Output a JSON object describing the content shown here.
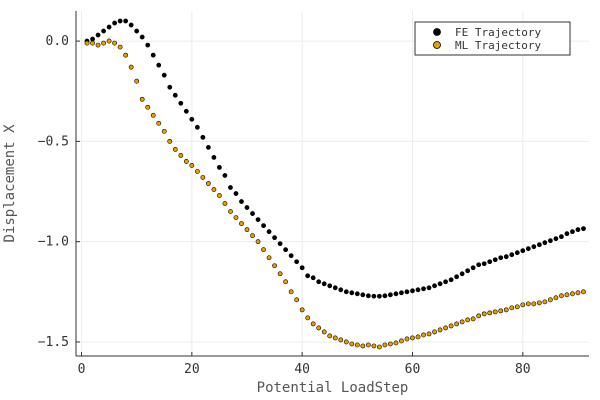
{
  "chart_data": {
    "type": "scatter",
    "title": "",
    "xlabel": "Potential LoadStep",
    "ylabel": "Displacement X",
    "xlim": [
      -1,
      92
    ],
    "ylim": [
      -1.57,
      0.15
    ],
    "x_ticks": [
      0,
      20,
      40,
      60,
      80
    ],
    "y_ticks": [
      0.0,
      -0.5,
      -1.0,
      -1.5
    ],
    "x_tick_labels": [
      "0",
      "20",
      "40",
      "60",
      "80"
    ],
    "y_tick_labels": [
      "0.0",
      "−0.5",
      "−1.0",
      "−1.5"
    ],
    "grid": true,
    "legend_position": "top-right",
    "series": [
      {
        "name": "FE Trajectory",
        "color": "#000000",
        "x": [
          1,
          2,
          3,
          4,
          5,
          6,
          7,
          8,
          9,
          10,
          11,
          12,
          13,
          14,
          15,
          16,
          17,
          18,
          19,
          20,
          21,
          22,
          23,
          24,
          25,
          26,
          27,
          28,
          29,
          30,
          31,
          32,
          33,
          34,
          35,
          36,
          37,
          38,
          39,
          40,
          41,
          42,
          43,
          44,
          45,
          46,
          47,
          48,
          49,
          50,
          51,
          52,
          53,
          54,
          55,
          56,
          57,
          58,
          59,
          60,
          61,
          62,
          63,
          64,
          65,
          66,
          67,
          68,
          69,
          70,
          71,
          72,
          73,
          74,
          75,
          76,
          77,
          78,
          79,
          80,
          81,
          82,
          83,
          84,
          85,
          86,
          87,
          88,
          89,
          90,
          91
        ],
        "y": [
          0.0,
          0.01,
          0.03,
          0.05,
          0.07,
          0.09,
          0.1,
          0.1,
          0.08,
          0.05,
          0.02,
          -0.02,
          -0.07,
          -0.12,
          -0.17,
          -0.23,
          -0.27,
          -0.31,
          -0.35,
          -0.39,
          -0.43,
          -0.48,
          -0.53,
          -0.58,
          -0.63,
          -0.67,
          -0.73,
          -0.76,
          -0.8,
          -0.83,
          -0.86,
          -0.89,
          -0.92,
          -0.95,
          -0.98,
          -1.01,
          -1.04,
          -1.07,
          -1.1,
          -1.13,
          -1.17,
          -1.18,
          -1.2,
          -1.21,
          -1.22,
          -1.23,
          -1.24,
          -1.25,
          -1.255,
          -1.26,
          -1.265,
          -1.27,
          -1.272,
          -1.272,
          -1.27,
          -1.265,
          -1.26,
          -1.255,
          -1.25,
          -1.245,
          -1.24,
          -1.235,
          -1.23,
          -1.22,
          -1.21,
          -1.2,
          -1.19,
          -1.175,
          -1.16,
          -1.145,
          -1.13,
          -1.115,
          -1.11,
          -1.1,
          -1.09,
          -1.08,
          -1.075,
          -1.065,
          -1.055,
          -1.045,
          -1.035,
          -1.025,
          -1.015,
          -1.005,
          -0.995,
          -0.985,
          -0.975,
          -0.96,
          -0.95,
          -0.94,
          -0.935
        ]
      },
      {
        "name": "ML Trajectory",
        "color": "#e69f00",
        "x": [
          1,
          2,
          3,
          4,
          5,
          6,
          7,
          8,
          9,
          10,
          11,
          12,
          13,
          14,
          15,
          16,
          17,
          18,
          19,
          20,
          21,
          22,
          23,
          24,
          25,
          26,
          27,
          28,
          29,
          30,
          31,
          32,
          33,
          34,
          35,
          36,
          37,
          38,
          39,
          40,
          41,
          42,
          43,
          44,
          45,
          46,
          47,
          48,
          49,
          50,
          51,
          52,
          53,
          54,
          55,
          56,
          57,
          58,
          59,
          60,
          61,
          62,
          63,
          64,
          65,
          66,
          67,
          68,
          69,
          70,
          71,
          72,
          73,
          74,
          75,
          76,
          77,
          78,
          79,
          80,
          81,
          82,
          83,
          84,
          85,
          86,
          87,
          88,
          89,
          90,
          91
        ],
        "y": [
          -0.01,
          -0.01,
          -0.02,
          -0.01,
          0.0,
          -0.01,
          -0.03,
          -0.07,
          -0.13,
          -0.2,
          -0.29,
          -0.33,
          -0.37,
          -0.41,
          -0.45,
          -0.5,
          -0.54,
          -0.57,
          -0.6,
          -0.62,
          -0.65,
          -0.68,
          -0.71,
          -0.74,
          -0.77,
          -0.81,
          -0.85,
          -0.88,
          -0.91,
          -0.94,
          -0.97,
          -1.0,
          -1.04,
          -1.08,
          -1.12,
          -1.16,
          -1.2,
          -1.25,
          -1.29,
          -1.34,
          -1.38,
          -1.41,
          -1.43,
          -1.45,
          -1.47,
          -1.48,
          -1.49,
          -1.5,
          -1.51,
          -1.515,
          -1.52,
          -1.515,
          -1.52,
          -1.525,
          -1.515,
          -1.51,
          -1.505,
          -1.495,
          -1.485,
          -1.48,
          -1.475,
          -1.465,
          -1.46,
          -1.45,
          -1.44,
          -1.43,
          -1.42,
          -1.41,
          -1.4,
          -1.39,
          -1.385,
          -1.37,
          -1.36,
          -1.355,
          -1.35,
          -1.345,
          -1.34,
          -1.33,
          -1.325,
          -1.315,
          -1.31,
          -1.31,
          -1.305,
          -1.3,
          -1.29,
          -1.28,
          -1.27,
          -1.265,
          -1.26,
          -1.255,
          -1.25
        ]
      }
    ]
  }
}
